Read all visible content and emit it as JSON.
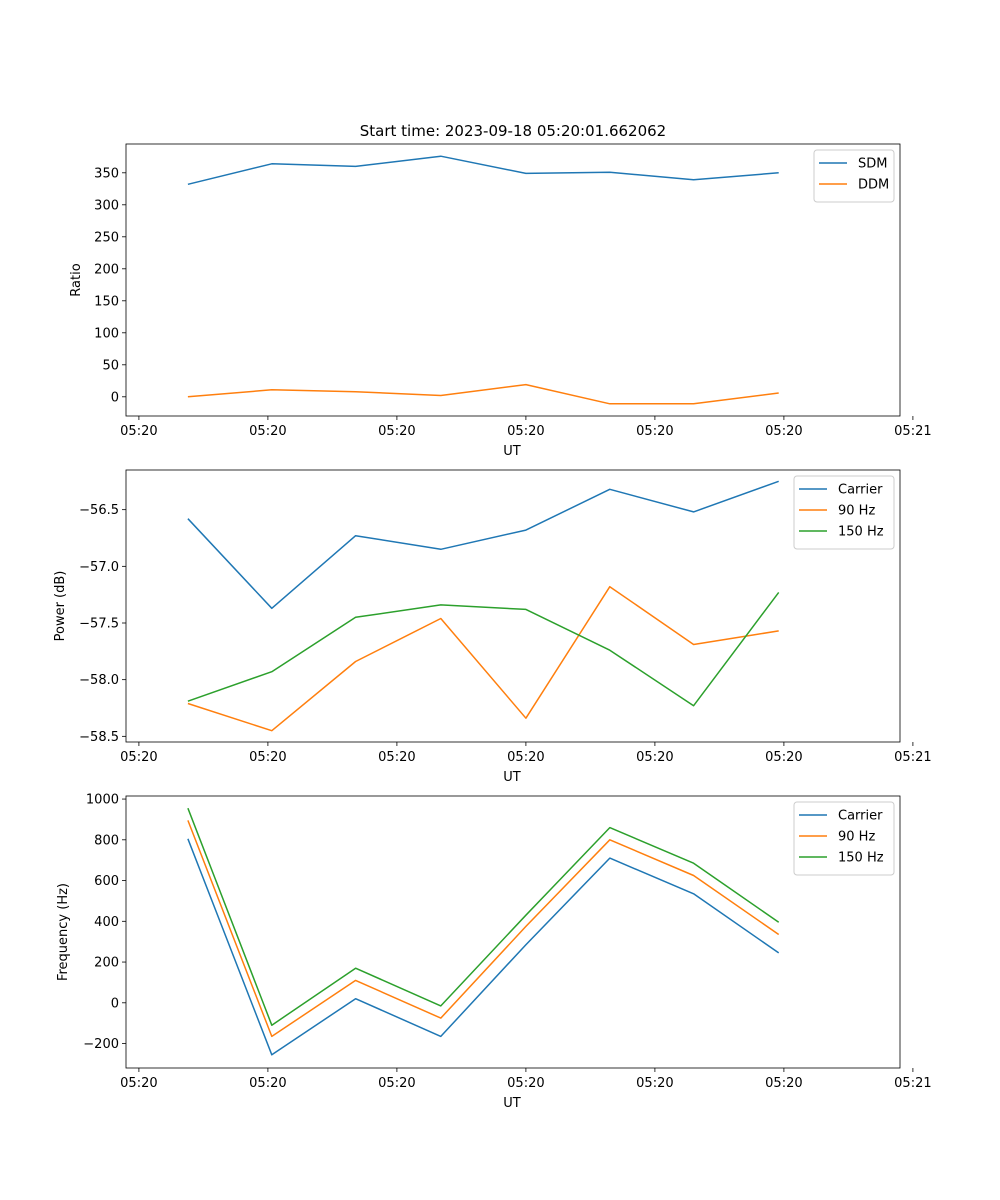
{
  "figure": {
    "title": "Start time: 2023-09-18 05:20:01.662062"
  },
  "chart_data": [
    {
      "type": "line",
      "title": "Start time: 2023-09-18 05:20:01.662062",
      "xlabel": "UT",
      "ylabel": "Ratio",
      "xlim": [
        -0.1,
        5.9
      ],
      "ylim": [
        -30,
        395
      ],
      "x": [
        0.38,
        1.03,
        1.68,
        2.34,
        3.0,
        3.65,
        4.3,
        4.96
      ],
      "x_ticks": [
        0,
        1,
        2,
        3,
        4,
        5,
        6
      ],
      "x_tick_labels": [
        "05:20",
        "05:20",
        "05:20",
        "05:20",
        "05:20",
        "05:20",
        "05:21"
      ],
      "y_ticks": [
        0,
        50,
        100,
        150,
        200,
        250,
        300,
        350
      ],
      "y_tick_labels": [
        "0",
        "50",
        "100",
        "150",
        "200",
        "250",
        "300",
        "350"
      ],
      "legend_position": "upper-right",
      "series": [
        {
          "name": "SDM",
          "color": "#1f77b4",
          "values": [
            332,
            364,
            360,
            376,
            349,
            351,
            339,
            350
          ]
        },
        {
          "name": "DDM",
          "color": "#ff7f0e",
          "values": [
            0,
            11,
            8,
            2,
            19,
            -11,
            -11,
            6
          ]
        }
      ]
    },
    {
      "type": "line",
      "title": "",
      "xlabel": "UT",
      "ylabel": "Power (dB)",
      "xlim": [
        -0.1,
        5.9
      ],
      "ylim": [
        -58.55,
        -56.15
      ],
      "x": [
        0.38,
        1.03,
        1.68,
        2.34,
        3.0,
        3.65,
        4.3,
        4.96
      ],
      "x_ticks": [
        0,
        1,
        2,
        3,
        4,
        5,
        6
      ],
      "x_tick_labels": [
        "05:20",
        "05:20",
        "05:20",
        "05:20",
        "05:20",
        "05:20",
        "05:21"
      ],
      "y_ticks": [
        -58.5,
        -58.0,
        -57.5,
        -57.0,
        -56.5
      ],
      "y_tick_labels": [
        "−58.5",
        "−58.0",
        "−57.5",
        "−57.0",
        "−56.5"
      ],
      "legend_position": "upper-right",
      "series": [
        {
          "name": "Carrier",
          "color": "#1f77b4",
          "values": [
            -56.58,
            -57.37,
            -56.73,
            -56.85,
            -56.68,
            -56.32,
            -56.52,
            -56.25
          ]
        },
        {
          "name": "90 Hz",
          "color": "#ff7f0e",
          "values": [
            -58.21,
            -58.45,
            -57.84,
            -57.46,
            -58.34,
            -57.18,
            -57.69,
            -57.57
          ]
        },
        {
          "name": "150 Hz",
          "color": "#2ca02c",
          "values": [
            -58.19,
            -57.93,
            -57.45,
            -57.34,
            -57.38,
            -57.74,
            -58.23,
            -57.23
          ]
        }
      ]
    },
    {
      "type": "line",
      "title": "",
      "xlabel": "UT",
      "ylabel": "Frequency (Hz)",
      "xlim": [
        -0.1,
        5.9
      ],
      "ylim": [
        -320,
        1015
      ],
      "x": [
        0.38,
        1.03,
        1.68,
        2.34,
        3.0,
        3.65,
        4.3,
        4.96
      ],
      "x_ticks": [
        0,
        1,
        2,
        3,
        4,
        5,
        6
      ],
      "x_tick_labels": [
        "05:20",
        "05:20",
        "05:20",
        "05:20",
        "05:20",
        "05:20",
        "05:21"
      ],
      "y_ticks": [
        -200,
        0,
        200,
        400,
        600,
        800,
        1000
      ],
      "y_tick_labels": [
        "−200",
        "0",
        "200",
        "400",
        "600",
        "800",
        "1000"
      ],
      "legend_position": "upper-right",
      "series": [
        {
          "name": "Carrier",
          "color": "#1f77b4",
          "values": [
            805,
            -255,
            20,
            -165,
            285,
            710,
            535,
            245
          ]
        },
        {
          "name": "90 Hz",
          "color": "#ff7f0e",
          "values": [
            895,
            -165,
            110,
            -75,
            375,
            800,
            625,
            335
          ]
        },
        {
          "name": "150 Hz",
          "color": "#2ca02c",
          "values": [
            955,
            -110,
            170,
            -15,
            430,
            860,
            685,
            395
          ]
        }
      ]
    }
  ]
}
